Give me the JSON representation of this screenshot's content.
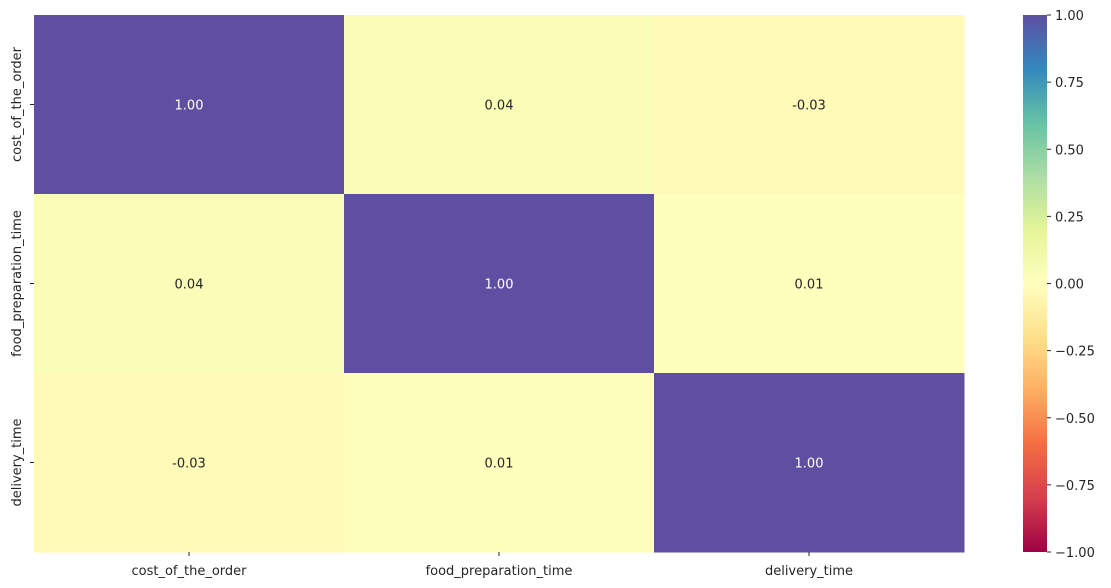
{
  "chart_data": {
    "type": "heatmap",
    "title": "",
    "xlabel": "",
    "ylabel": "",
    "x_categories": [
      "cost_of_the_order",
      "food_preparation_time",
      "delivery_time"
    ],
    "y_categories": [
      "cost_of_the_order",
      "food_preparation_time",
      "delivery_time"
    ],
    "values": [
      [
        1.0,
        0.04,
        -0.03
      ],
      [
        0.04,
        1.0,
        0.01
      ],
      [
        -0.03,
        0.01,
        1.0
      ]
    ],
    "annotations": [
      [
        "1.00",
        "0.04",
        "-0.03"
      ],
      [
        "0.04",
        "1.00",
        "0.01"
      ],
      [
        "-0.03",
        "0.01",
        "1.00"
      ]
    ],
    "vmin": -1.0,
    "vmax": 1.0,
    "colormap": "Spectral",
    "colorbar_ticks": [
      "−1.00",
      "−0.75",
      "−0.50",
      "−0.25",
      "0.00",
      "0.25",
      "0.50",
      "0.75",
      "1.00"
    ],
    "colorbar_tick_values": [
      -1.0,
      -0.75,
      -0.5,
      -0.25,
      0.0,
      0.25,
      0.5,
      0.75,
      1.0
    ],
    "grid": false
  }
}
